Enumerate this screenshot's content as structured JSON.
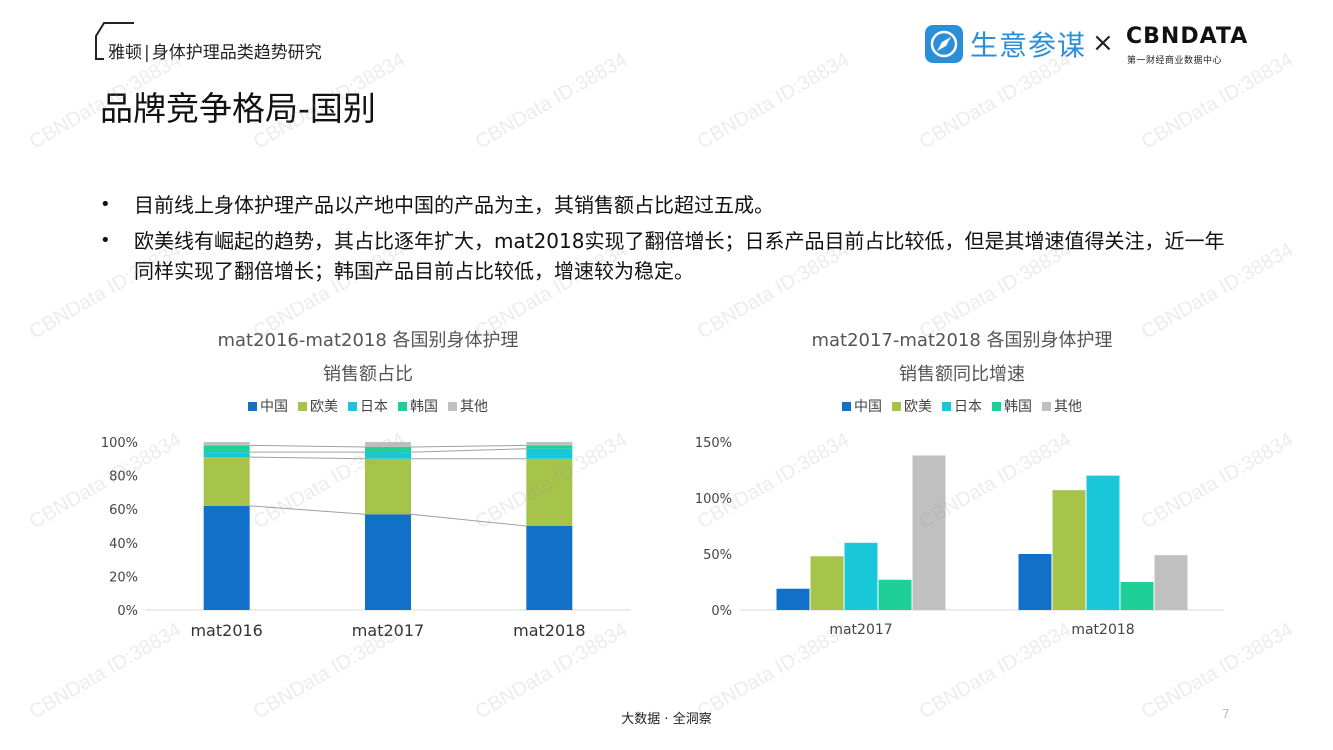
{
  "header": {
    "brand": "雅顿",
    "separator": "|",
    "subtitle": "身体护理品类趋势研究",
    "title": "品牌竞争格局-国别",
    "logo_text": "生意参谋",
    "times": "×",
    "cbn": "CBNDATA",
    "cbn_sub": "第一财经商业数据中心"
  },
  "bullets": [
    "目前线上身体护理产品以产地中国的产品为主，其销售额占比超过五成。",
    "欧美线有崛起的趋势，其占比逐年扩大，mat2018实现了翻倍增长；日系产品目前占比较低，但是其增速值得关注，近一年同样实现了翻倍增长；韩国产品目前占比较低，增速较为稳定。"
  ],
  "colors": {
    "中国": "#1170c8",
    "欧美": "#a6c34a",
    "日本": "#19c8d8",
    "韩国": "#1ecf98",
    "其他": "#c0c0c0"
  },
  "chart_data": [
    {
      "type": "bar",
      "stacked": true,
      "title_line1": "mat2016-mat2018 各国别身体护理",
      "title_line2": "销售额占比",
      "categories": [
        "mat2016",
        "mat2017",
        "mat2018"
      ],
      "series": [
        {
          "name": "中国",
          "values": [
            62,
            57,
            50
          ]
        },
        {
          "name": "欧美",
          "values": [
            29,
            33,
            40
          ]
        },
        {
          "name": "日本",
          "values": [
            3,
            4,
            6
          ]
        },
        {
          "name": "韩国",
          "values": [
            4,
            3,
            2
          ]
        },
        {
          "name": "其他",
          "values": [
            2,
            3,
            2
          ]
        }
      ],
      "ylim": [
        0,
        100
      ],
      "yticks": [
        "0%",
        "20%",
        "40%",
        "60%",
        "80%",
        "100%"
      ],
      "legend": "top"
    },
    {
      "type": "bar",
      "title_line1": "mat2017-mat2018 各国别身体护理",
      "title_line2": "销售额同比增速",
      "categories": [
        "mat2017",
        "mat2018"
      ],
      "series": [
        {
          "name": "中国",
          "values": [
            19,
            50
          ]
        },
        {
          "name": "欧美",
          "values": [
            48,
            107
          ]
        },
        {
          "name": "日本",
          "values": [
            60,
            120
          ]
        },
        {
          "name": "韩国",
          "values": [
            27,
            25
          ]
        },
        {
          "name": "其他",
          "values": [
            138,
            49
          ]
        }
      ],
      "ylim": [
        0,
        150
      ],
      "yticks": [
        "0%",
        "50%",
        "100%",
        "150%"
      ],
      "legend": "top"
    }
  ],
  "footer": "大数据 · 全洞察",
  "page_number": "7",
  "watermark": "CBNData ID:38834"
}
